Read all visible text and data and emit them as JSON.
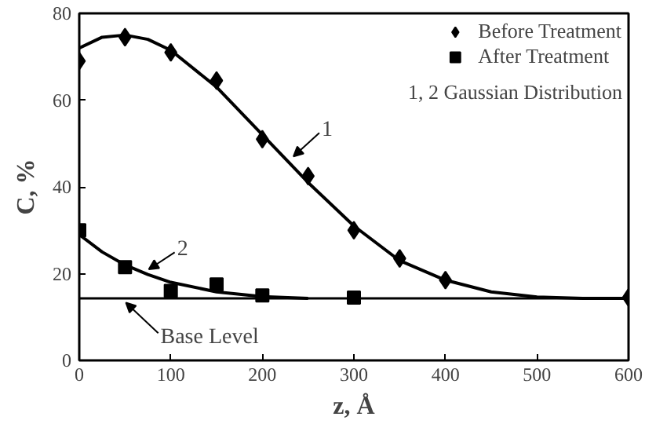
{
  "chart_data": {
    "type": "scatter",
    "xlabel": "z, Å",
    "ylabel": "C, %",
    "xlim": [
      0,
      600
    ],
    "ylim": [
      0,
      80
    ],
    "xticks": [
      0,
      100,
      200,
      300,
      400,
      500,
      600
    ],
    "yticks": [
      0,
      20,
      40,
      60,
      80
    ],
    "grid": false,
    "legend": "top right",
    "series": [
      {
        "name": "Before Treatment",
        "color": "#000000",
        "marker": "diamond",
        "x": [
          0,
          50,
          100,
          150,
          200,
          250,
          300,
          350,
          400,
          600
        ],
        "values": [
          69,
          74.5,
          71,
          64.5,
          51,
          42.5,
          30,
          23.5,
          18.5,
          14.5
        ]
      },
      {
        "name": "After Treatment",
        "color": "#000000",
        "marker": "square",
        "x": [
          0,
          50,
          100,
          150,
          200,
          300
        ],
        "values": [
          30,
          21.5,
          16,
          17.5,
          15,
          14.5
        ]
      },
      {
        "type": "line",
        "color": "#000000",
        "x": [
          0,
          25,
          50,
          75,
          100,
          150,
          200,
          250,
          300,
          350,
          400,
          450,
          500,
          550,
          600
        ],
        "values": [
          72,
          74.5,
          75,
          74,
          71.5,
          63,
          52,
          41,
          31,
          23,
          18.5,
          15.8,
          14.6,
          14.3,
          14.3
        ]
      },
      {
        "type": "line",
        "color": "#000000",
        "x": [
          0,
          25,
          50,
          75,
          100,
          150,
          200,
          250
        ],
        "values": [
          29,
          25,
          22,
          19.8,
          18,
          15.8,
          14.7,
          14.3
        ]
      }
    ],
    "ref_lines": [
      {
        "axis": "y",
        "value": 14.3,
        "color": "#000000"
      }
    ],
    "annotations": [
      "1, 2 Gaussian Distribution",
      {
        "text": "1",
        "x": 234,
        "y": 47
      },
      {
        "text": "2",
        "x": 76,
        "y": 21
      },
      {
        "text": "Base Level",
        "x": 51,
        "y": 13.3
      }
    ]
  }
}
